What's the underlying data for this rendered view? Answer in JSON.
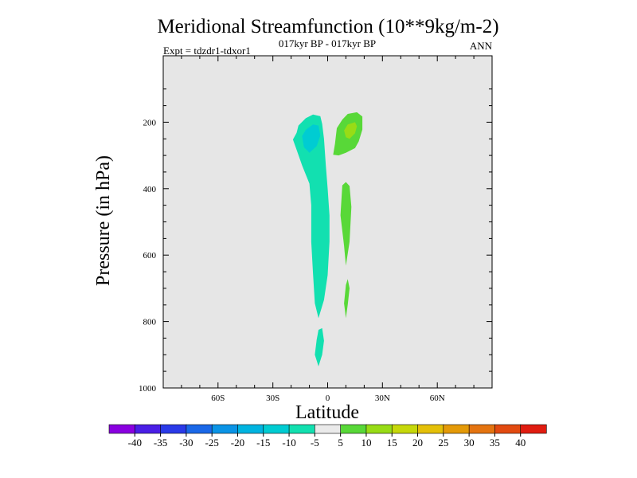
{
  "chart_data": {
    "type": "contour",
    "title": "Meridional Streamfunction (10**9kg/m-2)",
    "left_subtitle": "Expt = tdzdr1-tdxor1",
    "center_subtitle": "017kyr BP - 017kyr BP",
    "right_subtitle": "ANN",
    "xlabel": "Latitude",
    "ylabel": "Pressure (in hPa)",
    "xlim": [
      -90,
      90
    ],
    "ylim": [
      0,
      1000
    ],
    "x_ticks": [
      {
        "value": -60,
        "label": "60S"
      },
      {
        "value": -30,
        "label": "30S"
      },
      {
        "value": 0,
        "label": "0"
      },
      {
        "value": 30,
        "label": "30N"
      },
      {
        "value": 60,
        "label": "60N"
      }
    ],
    "y_ticks": [
      {
        "value": 200,
        "label": "200"
      },
      {
        "value": 400,
        "label": "400"
      },
      {
        "value": 600,
        "label": "600"
      },
      {
        "value": 800,
        "label": "800"
      },
      {
        "value": 1000,
        "label": "1000"
      }
    ],
    "plot_background": "#e6e6e6",
    "colorbar": {
      "levels": [
        -40,
        -35,
        -30,
        -25,
        -20,
        -15,
        -10,
        -5,
        5,
        10,
        15,
        20,
        25,
        30,
        35,
        40
      ],
      "level_labels": [
        "-40",
        "-35",
        "-30",
        "-25",
        "-20",
        "-15",
        "-10",
        "-5",
        "5",
        "10",
        "15",
        "20",
        "25",
        "30",
        "35",
        "40"
      ],
      "colors": [
        "#8a00e0",
        "#4a1ee6",
        "#2a3ae8",
        "#1a68e8",
        "#0a94e6",
        "#00b4e0",
        "#00ccd2",
        "#12e0b0",
        "#eaeaea",
        "#58d838",
        "#98dc16",
        "#c6d80a",
        "#e4c008",
        "#e49a08",
        "#e47410",
        "#e24a10",
        "#e01c10"
      ]
    },
    "regions": [
      {
        "name": "negative-cell-core",
        "level": "-15 to -10",
        "outline": [
          [
            -14,
            242
          ],
          [
            -12,
            223
          ],
          [
            -8,
            207
          ],
          [
            -5,
            210
          ],
          [
            -4,
            240
          ],
          [
            -6,
            272
          ],
          [
            -10,
            292
          ],
          [
            -13,
            275
          ]
        ]
      },
      {
        "name": "negative-cell-upper",
        "level": "-10 to -5",
        "outline": [
          [
            -17,
            232
          ],
          [
            -16,
            210
          ],
          [
            -12,
            188
          ],
          [
            -8,
            177
          ],
          [
            -4,
            182
          ],
          [
            -3,
            205
          ],
          [
            -2,
            250
          ],
          [
            -1,
            330
          ],
          [
            0,
            400
          ],
          [
            1,
            480
          ],
          [
            1,
            560
          ],
          [
            0,
            660
          ],
          [
            -2,
            735
          ],
          [
            -5,
            790
          ],
          [
            -7,
            745
          ],
          [
            -8,
            655
          ],
          [
            -9,
            560
          ],
          [
            -9,
            450
          ],
          [
            -10,
            385
          ],
          [
            -14,
            330
          ],
          [
            -17,
            283
          ],
          [
            -19,
            252
          ]
        ]
      },
      {
        "name": "negative-cell-lower",
        "level": "-10 to -5",
        "outline": [
          [
            -6,
            855
          ],
          [
            -5,
            825
          ],
          [
            -3,
            820
          ],
          [
            -2,
            858
          ],
          [
            -3,
            900
          ],
          [
            -5,
            935
          ],
          [
            -7,
            900
          ]
        ]
      },
      {
        "name": "positive-cell-outer",
        "level": "5 to 10",
        "outline": [
          [
            4,
            265
          ],
          [
            5,
            218
          ],
          [
            8,
            192
          ],
          [
            11,
            175
          ],
          [
            16,
            170
          ],
          [
            19,
            183
          ],
          [
            19,
            222
          ],
          [
            17,
            258
          ],
          [
            15,
            278
          ],
          [
            10,
            292
          ],
          [
            6,
            300
          ],
          [
            3,
            298
          ]
        ]
      },
      {
        "name": "positive-cell-core",
        "level": "10 to 15",
        "outline": [
          [
            9,
            225
          ],
          [
            11,
            207
          ],
          [
            15,
            200
          ],
          [
            16,
            212
          ],
          [
            15,
            233
          ],
          [
            12,
            250
          ],
          [
            10,
            245
          ]
        ]
      },
      {
        "name": "positive-column-upper",
        "level": "5 to 10",
        "outline": [
          [
            8,
            390
          ],
          [
            10,
            380
          ],
          [
            12,
            392
          ],
          [
            13,
            455
          ],
          [
            12,
            560
          ],
          [
            10,
            632
          ],
          [
            9,
            572
          ],
          [
            7,
            480
          ]
        ]
      },
      {
        "name": "positive-column-lower",
        "level": "5 to 10",
        "outline": [
          [
            10,
            690
          ],
          [
            11,
            672
          ],
          [
            12,
            700
          ],
          [
            11,
            750
          ],
          [
            10,
            790
          ],
          [
            9,
            745
          ]
        ]
      }
    ]
  }
}
